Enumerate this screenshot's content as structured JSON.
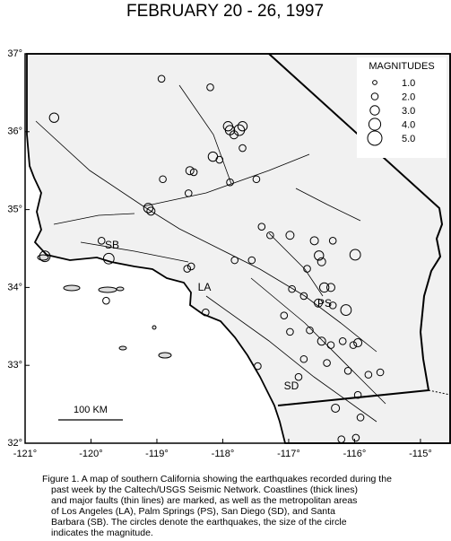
{
  "title": "FEBRUARY 20 - 26, 1997",
  "map": {
    "xlim": [
      -121,
      -114.55
    ],
    "ylim": [
      32,
      37
    ],
    "xticks": [
      {
        "value": -121,
        "label": "-121°"
      },
      {
        "value": -120,
        "label": "-120°"
      },
      {
        "value": -119,
        "label": "-119°"
      },
      {
        "value": -118,
        "label": "-118°"
      },
      {
        "value": -117,
        "label": "-117°"
      },
      {
        "value": -116,
        "label": "-116°"
      },
      {
        "value": -115,
        "label": "-115°"
      }
    ],
    "yticks": [
      {
        "value": 37,
        "label": "37°"
      },
      {
        "value": 36,
        "label": "36°"
      },
      {
        "value": 35,
        "label": "35°"
      },
      {
        "value": 34,
        "label": "34°"
      },
      {
        "value": 33,
        "label": "33°"
      },
      {
        "value": 32,
        "label": "32°"
      }
    ],
    "places": [
      "SB",
      "LA",
      "PS",
      "SD"
    ],
    "scale_bar": "100 KM",
    "legend": {
      "title": "MAGNITUDES",
      "items": [
        {
          "value": 1,
          "label": "1.0"
        },
        {
          "value": 2,
          "label": "2.0"
        },
        {
          "value": 3,
          "label": "3.0"
        },
        {
          "value": 4,
          "label": "4.0"
        },
        {
          "value": 5,
          "label": "5.0"
        }
      ]
    },
    "earthquakes": [
      {
        "lon": -120.56,
        "lat": 36.18,
        "mag": 3.0
      },
      {
        "lon": -118.93,
        "lat": 36.68,
        "mag": 2.0
      },
      {
        "lon": -118.19,
        "lat": 36.57,
        "mag": 2.0
      },
      {
        "lon": -117.92,
        "lat": 36.07,
        "mag": 3.0
      },
      {
        "lon": -117.75,
        "lat": 36.02,
        "mag": 3.5
      },
      {
        "lon": -117.7,
        "lat": 36.07,
        "mag": 3.0
      },
      {
        "lon": -117.89,
        "lat": 36.02,
        "mag": 3.0
      },
      {
        "lon": -117.83,
        "lat": 35.96,
        "mag": 2.5
      },
      {
        "lon": -117.7,
        "lat": 35.79,
        "mag": 2.0
      },
      {
        "lon": -118.15,
        "lat": 35.68,
        "mag": 3.0
      },
      {
        "lon": -118.05,
        "lat": 35.64,
        "mag": 2.0
      },
      {
        "lon": -118.5,
        "lat": 35.5,
        "mag": 2.5
      },
      {
        "lon": -118.44,
        "lat": 35.48,
        "mag": 2.0
      },
      {
        "lon": -118.91,
        "lat": 35.39,
        "mag": 2.0
      },
      {
        "lon": -118.52,
        "lat": 35.21,
        "mag": 2.0
      },
      {
        "lon": -117.89,
        "lat": 35.35,
        "mag": 2.0
      },
      {
        "lon": -117.49,
        "lat": 35.39,
        "mag": 2.0
      },
      {
        "lon": -119.13,
        "lat": 35.02,
        "mag": 3.0
      },
      {
        "lon": -119.09,
        "lat": 34.98,
        "mag": 2.5
      },
      {
        "lon": -119.73,
        "lat": 34.37,
        "mag": 3.5
      },
      {
        "lon": -120.7,
        "lat": 34.4,
        "mag": 3.5
      },
      {
        "lon": -119.84,
        "lat": 34.6,
        "mag": 2.0
      },
      {
        "lon": -118.48,
        "lat": 34.27,
        "mag": 2.0
      },
      {
        "lon": -118.54,
        "lat": 34.24,
        "mag": 2.0
      },
      {
        "lon": -118.26,
        "lat": 33.68,
        "mag": 2.0
      },
      {
        "lon": -117.82,
        "lat": 34.35,
        "mag": 2.0
      },
      {
        "lon": -117.56,
        "lat": 34.35,
        "mag": 2.0
      },
      {
        "lon": -117.41,
        "lat": 34.78,
        "mag": 2.0
      },
      {
        "lon": -117.28,
        "lat": 34.67,
        "mag": 2.0
      },
      {
        "lon": -116.98,
        "lat": 34.67,
        "mag": 2.5
      },
      {
        "lon": -116.61,
        "lat": 34.6,
        "mag": 2.5
      },
      {
        "lon": -116.54,
        "lat": 34.41,
        "mag": 3.0
      },
      {
        "lon": -116.5,
        "lat": 34.33,
        "mag": 2.5
      },
      {
        "lon": -116.33,
        "lat": 34.6,
        "mag": 2.0
      },
      {
        "lon": -115.99,
        "lat": 34.42,
        "mag": 3.5
      },
      {
        "lon": -116.72,
        "lat": 34.24,
        "mag": 2.0
      },
      {
        "lon": -116.46,
        "lat": 34.0,
        "mag": 3.0
      },
      {
        "lon": -116.36,
        "lat": 34.0,
        "mag": 2.5
      },
      {
        "lon": -116.95,
        "lat": 33.98,
        "mag": 2.0
      },
      {
        "lon": -116.77,
        "lat": 33.89,
        "mag": 2.0
      },
      {
        "lon": -116.55,
        "lat": 33.8,
        "mag": 2.5
      },
      {
        "lon": -116.33,
        "lat": 33.77,
        "mag": 2.0
      },
      {
        "lon": -116.13,
        "lat": 33.71,
        "mag": 3.5
      },
      {
        "lon": -117.07,
        "lat": 33.64,
        "mag": 2.0
      },
      {
        "lon": -116.98,
        "lat": 33.43,
        "mag": 2.0
      },
      {
        "lon": -116.68,
        "lat": 33.45,
        "mag": 2.0
      },
      {
        "lon": -116.5,
        "lat": 33.31,
        "mag": 2.5
      },
      {
        "lon": -116.36,
        "lat": 33.26,
        "mag": 2.0
      },
      {
        "lon": -116.18,
        "lat": 33.31,
        "mag": 2.0
      },
      {
        "lon": -116.02,
        "lat": 33.26,
        "mag": 2.0
      },
      {
        "lon": -115.95,
        "lat": 33.29,
        "mag": 2.5
      },
      {
        "lon": -116.1,
        "lat": 32.93,
        "mag": 2.0
      },
      {
        "lon": -115.79,
        "lat": 32.88,
        "mag": 2.0
      },
      {
        "lon": -115.61,
        "lat": 32.91,
        "mag": 2.0
      },
      {
        "lon": -116.77,
        "lat": 33.08,
        "mag": 2.0
      },
      {
        "lon": -116.42,
        "lat": 33.03,
        "mag": 2.0
      },
      {
        "lon": -117.47,
        "lat": 32.99,
        "mag": 2.0
      },
      {
        "lon": -116.85,
        "lat": 32.85,
        "mag": 2.0
      },
      {
        "lon": -116.29,
        "lat": 32.45,
        "mag": 2.5
      },
      {
        "lon": -115.95,
        "lat": 32.62,
        "mag": 2.0
      },
      {
        "lon": -115.91,
        "lat": 32.33,
        "mag": 2.0
      },
      {
        "lon": -115.98,
        "lat": 32.07,
        "mag": 2.0
      },
      {
        "lon": -116.2,
        "lat": 32.05,
        "mag": 2.0
      },
      {
        "lon": -119.77,
        "lat": 33.83,
        "mag": 2.0
      }
    ]
  },
  "caption": [
    "Figure 1. A map of southern California showing the earthquakes recorded during the",
    "past week by the Caltech/USGS Seismic Network.  Coastlines (thick lines)",
    "and major faults (thin lines) are marked, as well as the metropolitan areas",
    "of Los Angeles (LA), Palm Springs (PS), San Diego (SD), and Santa",
    "Barbara (SB).  The circles denote the earthquakes, the size of the circle",
    "indicates the magnitude."
  ]
}
